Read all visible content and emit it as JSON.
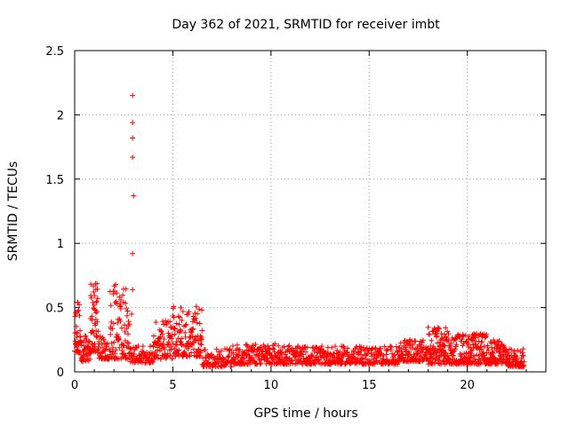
{
  "chart_data": {
    "type": "scatter",
    "title": "Day 362 of 2021, SRMTID for receiver imbt",
    "xlabel": "GPS time / hours",
    "ylabel": "SRMTID / TECUs",
    "xlim": [
      0,
      24
    ],
    "ylim": [
      0,
      2.5
    ],
    "xticks": [
      0,
      5,
      10,
      15,
      20
    ],
    "xtick_labels": [
      "0",
      "5",
      "10",
      "15",
      "20"
    ],
    "yticks": [
      0,
      0.5,
      1,
      1.5,
      2,
      2.5
    ],
    "ytick_labels": [
      "0",
      "0.5",
      "1",
      "1.5",
      "2",
      "2.5"
    ],
    "grid": true,
    "marker": "+",
    "colors": {
      "marker": "#ff0000",
      "grid": "#a0a0a0",
      "axis": "#000000"
    },
    "outliers": [
      {
        "x": 2.95,
        "y": 2.15
      },
      {
        "x": 2.95,
        "y": 1.94
      },
      {
        "x": 2.95,
        "y": 1.82
      },
      {
        "x": 2.95,
        "y": 1.67
      },
      {
        "x": 3.0,
        "y": 1.37
      },
      {
        "x": 2.95,
        "y": 0.92
      },
      {
        "x": 2.95,
        "y": 0.64
      },
      {
        "x": 2.9,
        "y": 0.45
      }
    ],
    "segments": [
      {
        "x": [
          0.0,
          0.3
        ],
        "y": [
          0.15,
          0.55
        ],
        "n": 35
      },
      {
        "x": [
          0.3,
          0.8
        ],
        "y": [
          0.08,
          0.28
        ],
        "n": 45
      },
      {
        "x": [
          0.8,
          1.2
        ],
        "y": [
          0.15,
          0.7
        ],
        "n": 55
      },
      {
        "x": [
          1.2,
          1.8
        ],
        "y": [
          0.1,
          0.3
        ],
        "n": 45
      },
      {
        "x": [
          1.8,
          2.8
        ],
        "y": [
          0.1,
          0.68
        ],
        "n": 90
      },
      {
        "x": [
          2.8,
          4.0
        ],
        "y": [
          0.07,
          0.2
        ],
        "n": 70
      },
      {
        "x": [
          4.0,
          5.0
        ],
        "y": [
          0.1,
          0.4
        ],
        "n": 80
      },
      {
        "x": [
          5.0,
          6.5
        ],
        "y": [
          0.12,
          0.52
        ],
        "n": 130
      },
      {
        "x": [
          6.5,
          8.0
        ],
        "y": [
          0.04,
          0.18
        ],
        "n": 90
      },
      {
        "x": [
          8.0,
          11.0
        ],
        "y": [
          0.06,
          0.22
        ],
        "n": 200
      },
      {
        "x": [
          11.0,
          14.0
        ],
        "y": [
          0.06,
          0.2
        ],
        "n": 200
      },
      {
        "x": [
          14.0,
          16.5
        ],
        "y": [
          0.06,
          0.2
        ],
        "n": 160
      },
      {
        "x": [
          16.5,
          18.0
        ],
        "y": [
          0.08,
          0.25
        ],
        "n": 120
      },
      {
        "x": [
          18.0,
          19.0
        ],
        "y": [
          0.06,
          0.35
        ],
        "n": 110
      },
      {
        "x": [
          19.0,
          21.0
        ],
        "y": [
          0.06,
          0.3
        ],
        "n": 200
      },
      {
        "x": [
          21.0,
          22.0
        ],
        "y": [
          0.06,
          0.25
        ],
        "n": 100
      },
      {
        "x": [
          22.0,
          22.9
        ],
        "y": [
          0.04,
          0.18
        ],
        "n": 70
      }
    ]
  }
}
